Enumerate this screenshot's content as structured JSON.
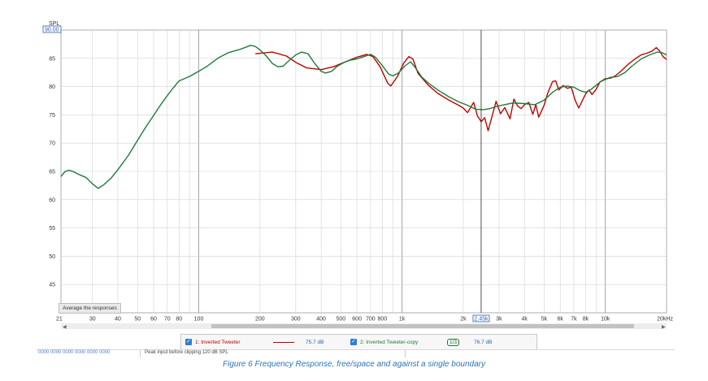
{
  "chart_data": {
    "type": "line",
    "xscale": "log",
    "xlim": [
      21,
      20000
    ],
    "ylim": [
      40,
      90
    ],
    "grid": true,
    "ylabel": "SPL",
    "y_top_label": "90.00",
    "y_ticks": [
      "85",
      "80",
      "75",
      "70",
      "65",
      "60",
      "55",
      "50",
      "45"
    ],
    "x_ticks": [
      "21",
      "30",
      "40",
      "50",
      "60",
      "70",
      "80",
      "100",
      "200",
      "300",
      "400",
      "500",
      "600",
      "700",
      "800",
      "1k",
      "2k",
      "2.45k",
      "3k",
      "4k",
      "5k",
      "6k",
      "7k",
      "8k",
      "10k",
      "20kHz"
    ],
    "cursor_x": 2450,
    "series": [
      {
        "name": "1: Inverted Tweeter",
        "color": "#c00000",
        "points": [
          [
            190,
            85.8
          ],
          [
            230,
            86.1
          ],
          [
            270,
            85.4
          ],
          [
            300,
            84.3
          ],
          [
            340,
            83.3
          ],
          [
            400,
            83.0
          ],
          [
            460,
            83.5
          ],
          [
            520,
            84.3
          ],
          [
            600,
            85.2
          ],
          [
            670,
            85.7
          ],
          [
            720,
            85.3
          ],
          [
            780,
            83.5
          ],
          [
            850,
            80.6
          ],
          [
            880,
            80.1
          ],
          [
            950,
            81.8
          ],
          [
            1020,
            84.2
          ],
          [
            1080,
            85.3
          ],
          [
            1130,
            84.9
          ],
          [
            1200,
            82.3
          ],
          [
            1350,
            80.2
          ],
          [
            1500,
            78.8
          ],
          [
            1700,
            77.6
          ],
          [
            1900,
            76.7
          ],
          [
            2000,
            76.2
          ],
          [
            2100,
            75.4
          ],
          [
            2250,
            77.2
          ],
          [
            2350,
            74.8
          ],
          [
            2450,
            73.8
          ],
          [
            2550,
            74.5
          ],
          [
            2650,
            72.2
          ],
          [
            2750,
            74.3
          ],
          [
            2900,
            77.4
          ],
          [
            3050,
            75.2
          ],
          [
            3200,
            76.3
          ],
          [
            3400,
            74.3
          ],
          [
            3550,
            77.8
          ],
          [
            3700,
            76.6
          ],
          [
            3850,
            76.1
          ],
          [
            4000,
            76.8
          ],
          [
            4200,
            77.2
          ],
          [
            4400,
            75.1
          ],
          [
            4550,
            76.8
          ],
          [
            4700,
            74.6
          ],
          [
            5000,
            76.7
          ],
          [
            5200,
            78.8
          ],
          [
            5500,
            80.9
          ],
          [
            5700,
            81.0
          ],
          [
            5900,
            79.4
          ],
          [
            6200,
            80.2
          ],
          [
            6500,
            79.7
          ],
          [
            6800,
            79.9
          ],
          [
            7100,
            77.6
          ],
          [
            7400,
            76.2
          ],
          [
            7700,
            77.5
          ],
          [
            8000,
            78.7
          ],
          [
            8300,
            79.4
          ],
          [
            8600,
            78.6
          ],
          [
            9000,
            79.5
          ],
          [
            9400,
            80.8
          ],
          [
            10000,
            81.4
          ],
          [
            10600,
            81.5
          ],
          [
            11200,
            81.9
          ],
          [
            12000,
            82.8
          ],
          [
            13000,
            84.0
          ],
          [
            14000,
            84.9
          ],
          [
            15000,
            85.6
          ],
          [
            16000,
            85.9
          ],
          [
            17000,
            86.3
          ],
          [
            17800,
            86.9
          ],
          [
            18500,
            86.3
          ],
          [
            19200,
            85.3
          ],
          [
            20000,
            84.8
          ]
        ]
      },
      {
        "name": "2: Inverted Tweeter-copy",
        "color": "#1f7a3c",
        "points": [
          [
            21,
            64.1
          ],
          [
            22,
            65.0
          ],
          [
            23,
            65.2
          ],
          [
            24,
            65.0
          ],
          [
            26,
            64.4
          ],
          [
            28,
            63.9
          ],
          [
            30,
            62.8
          ],
          [
            32,
            62.0
          ],
          [
            34,
            62.6
          ],
          [
            37,
            63.8
          ],
          [
            40,
            65.3
          ],
          [
            45,
            67.8
          ],
          [
            50,
            70.5
          ],
          [
            55,
            72.9
          ],
          [
            60,
            74.9
          ],
          [
            65,
            76.8
          ],
          [
            70,
            78.4
          ],
          [
            75,
            79.8
          ],
          [
            80,
            81.0
          ],
          [
            90,
            81.8
          ],
          [
            100,
            82.7
          ],
          [
            110,
            83.6
          ],
          [
            125,
            85.1
          ],
          [
            140,
            86.0
          ],
          [
            160,
            86.6
          ],
          [
            180,
            87.3
          ],
          [
            190,
            87.1
          ],
          [
            200,
            86.5
          ],
          [
            215,
            85.4
          ],
          [
            230,
            84.1
          ],
          [
            245,
            83.5
          ],
          [
            260,
            83.6
          ],
          [
            280,
            84.7
          ],
          [
            300,
            85.6
          ],
          [
            320,
            86.1
          ],
          [
            345,
            85.8
          ],
          [
            370,
            84.2
          ],
          [
            400,
            82.7
          ],
          [
            420,
            82.4
          ],
          [
            450,
            82.7
          ],
          [
            480,
            83.6
          ],
          [
            520,
            84.3
          ],
          [
            560,
            84.7
          ],
          [
            600,
            84.9
          ],
          [
            650,
            85.3
          ],
          [
            700,
            85.7
          ],
          [
            740,
            85.2
          ],
          [
            800,
            83.7
          ],
          [
            860,
            82.2
          ],
          [
            900,
            81.9
          ],
          [
            960,
            82.4
          ],
          [
            1030,
            83.6
          ],
          [
            1100,
            84.4
          ],
          [
            1160,
            83.4
          ],
          [
            1250,
            81.7
          ],
          [
            1350,
            80.6
          ],
          [
            1500,
            79.4
          ],
          [
            1700,
            78.2
          ],
          [
            1900,
            77.3
          ],
          [
            2100,
            76.7
          ],
          [
            2300,
            76.0
          ],
          [
            2500,
            75.9
          ],
          [
            2700,
            76.1
          ],
          [
            3000,
            76.6
          ],
          [
            3500,
            77.1
          ],
          [
            4000,
            77.0
          ],
          [
            4500,
            76.8
          ],
          [
            5000,
            77.6
          ],
          [
            5500,
            79.0
          ],
          [
            6000,
            79.9
          ],
          [
            6500,
            80.1
          ],
          [
            7000,
            79.9
          ],
          [
            7500,
            79.3
          ],
          [
            8000,
            79.0
          ],
          [
            8500,
            79.5
          ],
          [
            9500,
            80.9
          ],
          [
            10500,
            81.6
          ],
          [
            11500,
            81.8
          ],
          [
            12500,
            82.5
          ],
          [
            13500,
            83.6
          ],
          [
            15000,
            84.9
          ],
          [
            16500,
            85.6
          ],
          [
            18000,
            86.1
          ],
          [
            19000,
            86.0
          ],
          [
            20000,
            85.6
          ]
        ]
      }
    ]
  },
  "toolbar": {
    "avg_button": "Average the responses"
  },
  "legend": {
    "item1": {
      "name": "1: Inverted Tweeter",
      "value": "75.7 dB",
      "color": "#c00000"
    },
    "item2": {
      "name": "2: Inverted Tweeter-copy",
      "value": "76.7 dB",
      "color": "#1f7a3c",
      "smoothing": "1/3"
    }
  },
  "status": {
    "cells": "0000 0000  0000 0000  0000 0000",
    "peak": "Peak input before clipping 120 dB SPL"
  },
  "caption": "Figure 6 Frequency Response, free/space and against a single boundary"
}
